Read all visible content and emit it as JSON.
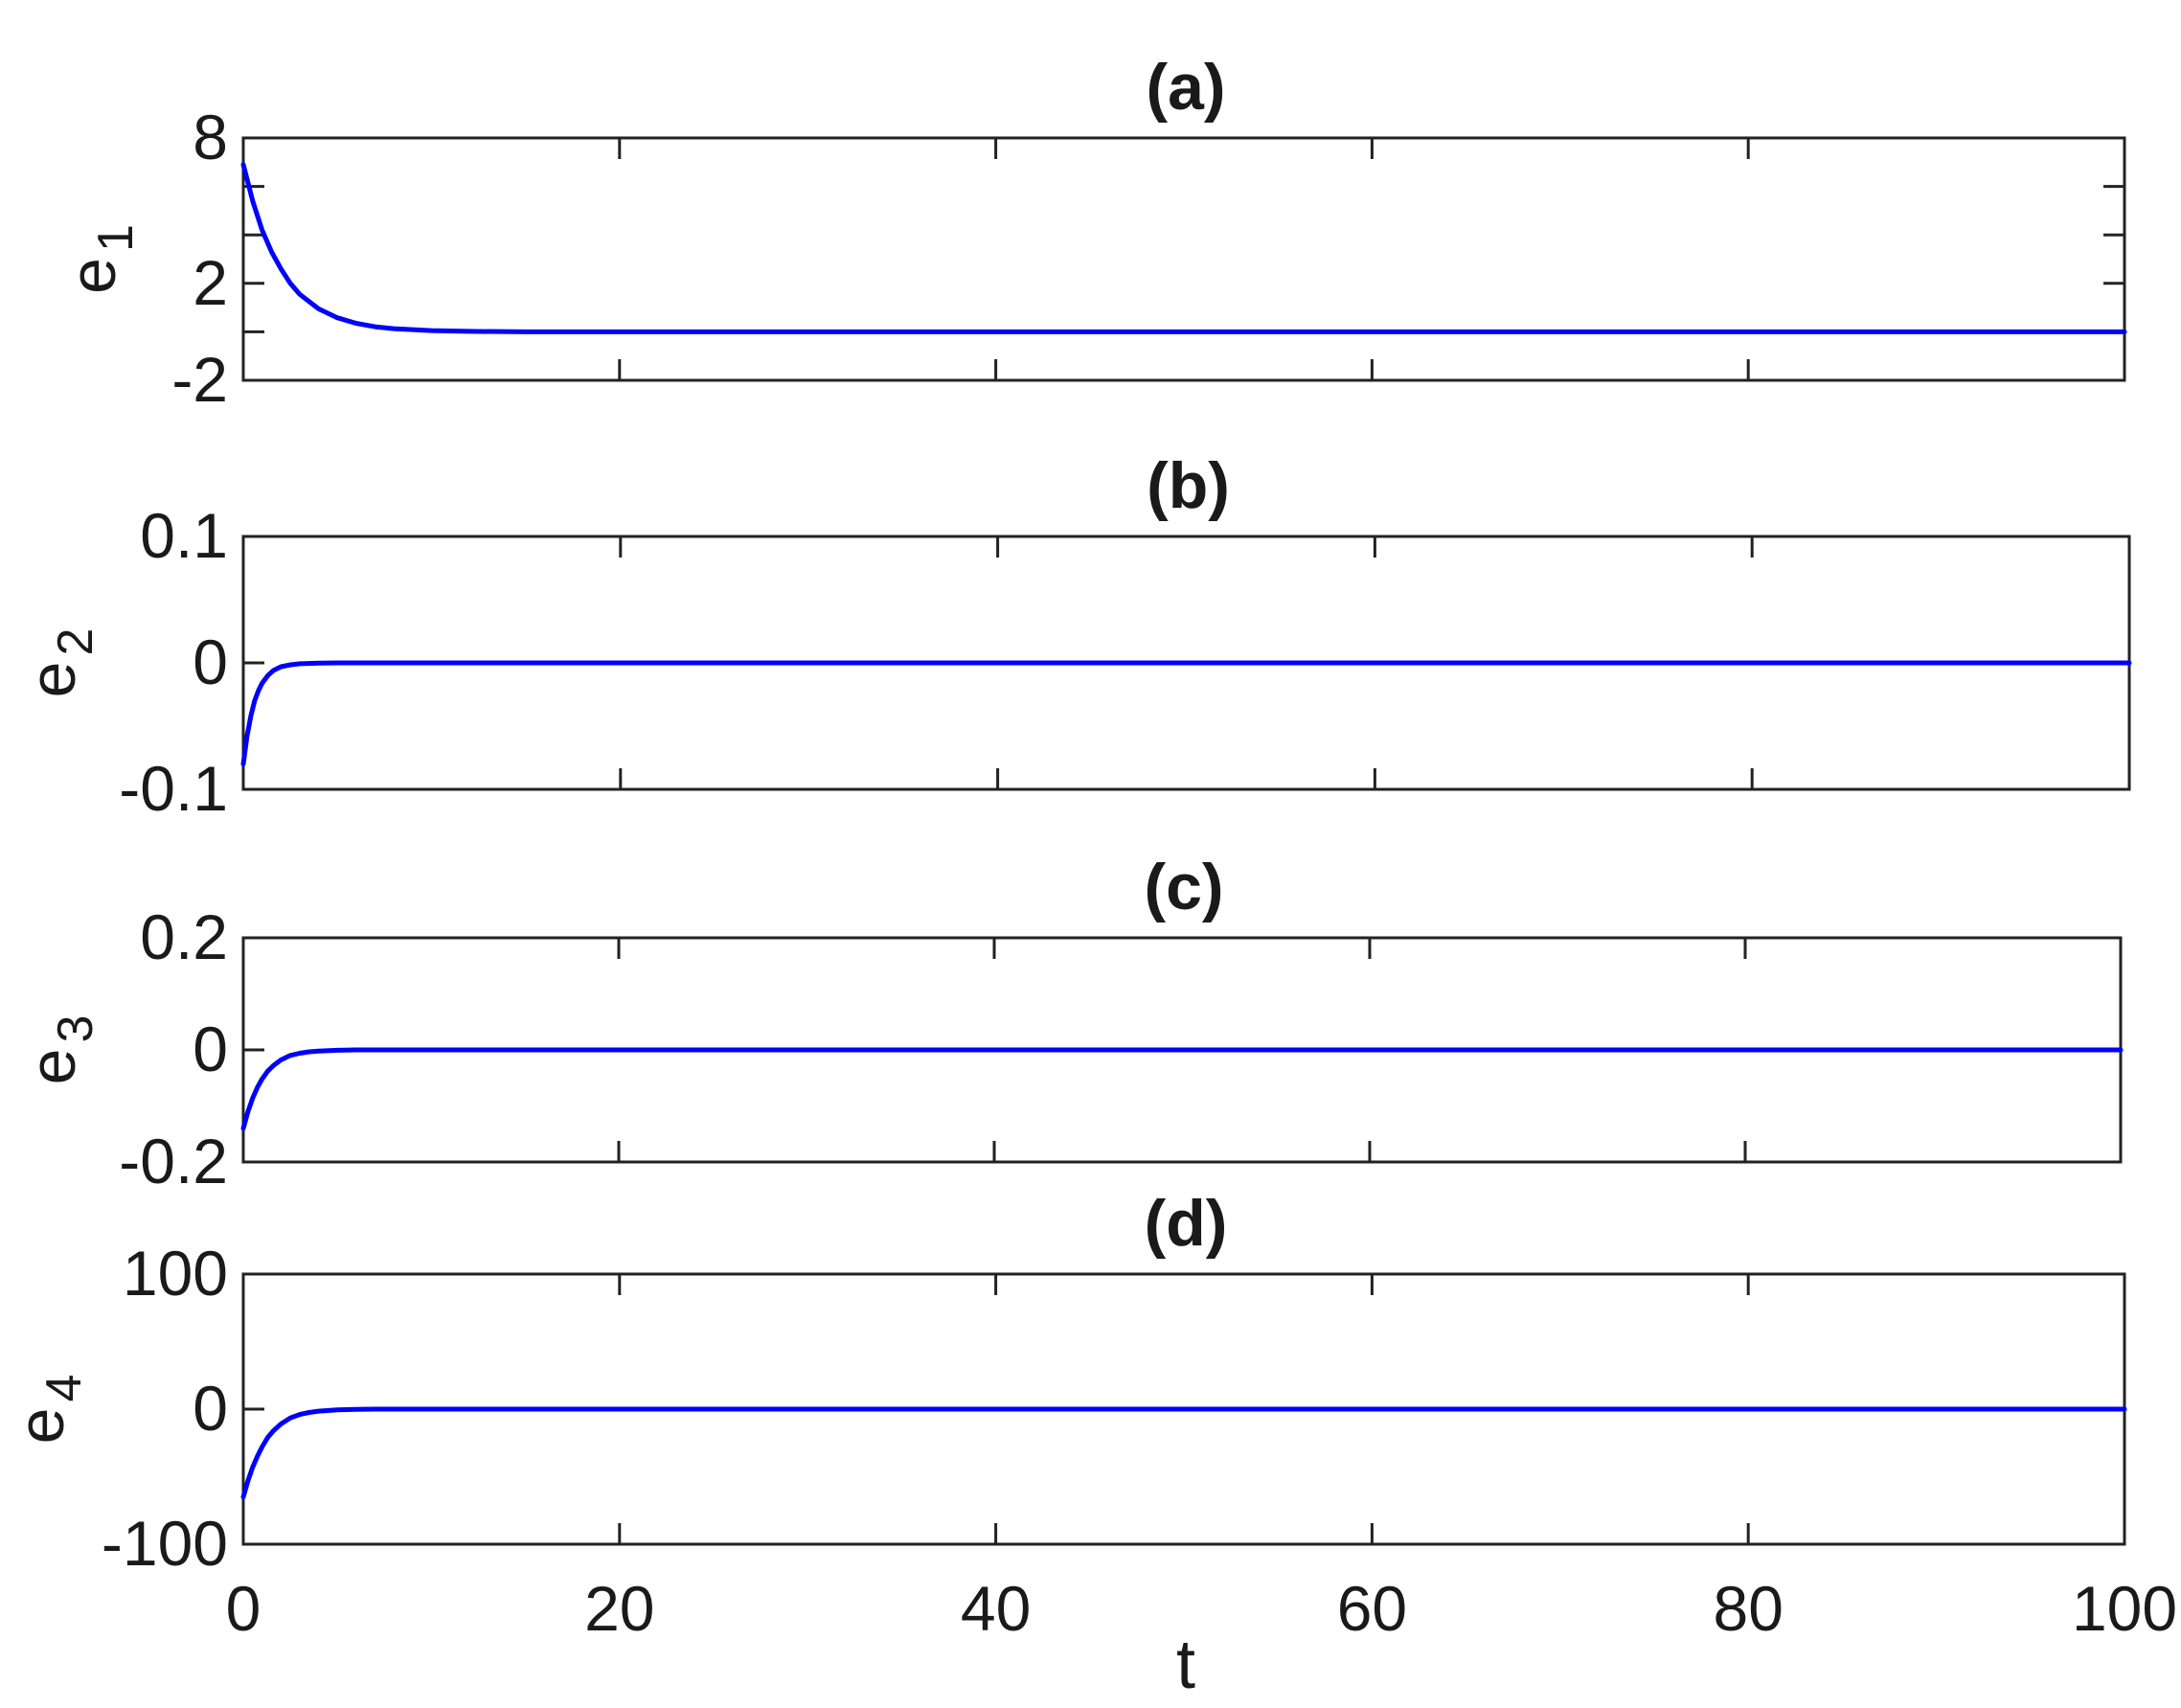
{
  "chart_data": [
    {
      "type": "line",
      "title": "(a)",
      "ylabel": "e",
      "ylabel_sub": "1",
      "xlim": [
        0,
        100
      ],
      "ylim": [
        -2,
        8
      ],
      "yticks": [
        -2,
        0,
        2,
        4,
        6,
        8
      ],
      "yticklabels": [
        "-2",
        "",
        "2",
        "",
        "",
        "8"
      ],
      "xticks": [
        0,
        20,
        40,
        60,
        80,
        100
      ],
      "color": "#0000ff",
      "series": [
        {
          "x": [
            0,
            0.5,
            1,
            1.5,
            2,
            2.5,
            3,
            4,
            5,
            6,
            7,
            8,
            10,
            12,
            15,
            20,
            30,
            50,
            80,
            100
          ],
          "y": [
            6.9,
            5.4,
            4.2,
            3.3,
            2.6,
            2.0,
            1.55,
            0.95,
            0.58,
            0.35,
            0.21,
            0.13,
            0.05,
            0.02,
            0.0,
            0.0,
            0.0,
            0.0,
            0.0,
            0.0
          ]
        }
      ]
    },
    {
      "type": "line",
      "title": "(b)",
      "ylabel": "e",
      "ylabel_sub": "2",
      "xlim": [
        0,
        100
      ],
      "ylim": [
        -0.1,
        0.1
      ],
      "yticks": [
        -0.1,
        0,
        0.1
      ],
      "yticklabels": [
        "-0.1",
        "0",
        "0.1"
      ],
      "xticks": [
        0,
        20,
        40,
        60,
        80,
        100
      ],
      "color": "#0000ff",
      "series": [
        {
          "x": [
            0,
            0.2,
            0.4,
            0.6,
            0.8,
            1,
            1.3,
            1.6,
            2,
            2.5,
            3,
            4,
            5,
            10,
            30,
            60,
            100
          ],
          "y": [
            -0.08,
            -0.058,
            -0.042,
            -0.03,
            -0.022,
            -0.016,
            -0.01,
            -0.006,
            -0.003,
            -0.0015,
            -0.0007,
            -0.0002,
            0.0,
            0.0,
            0.0,
            0.0,
            0.0
          ]
        }
      ]
    },
    {
      "type": "line",
      "title": "(c)",
      "ylabel": "e",
      "ylabel_sub": "3",
      "xlim": [
        0,
        100
      ],
      "ylim": [
        -0.2,
        0.2
      ],
      "yticks": [
        -0.2,
        0,
        0.2
      ],
      "yticklabels": [
        "-0.2",
        "0",
        "0.2"
      ],
      "xticks": [
        0,
        20,
        40,
        60,
        80,
        100
      ],
      "color": "#0000ff",
      "series": [
        {
          "x": [
            0,
            0.25,
            0.5,
            0.75,
            1,
            1.3,
            1.6,
            2,
            2.5,
            3,
            3.5,
            4,
            5,
            6,
            10,
            30,
            60,
            100
          ],
          "y": [
            -0.14,
            -0.11,
            -0.086,
            -0.067,
            -0.052,
            -0.038,
            -0.028,
            -0.018,
            -0.01,
            -0.006,
            -0.0035,
            -0.002,
            -0.0007,
            0.0,
            0.0,
            0.0,
            0.0,
            0.0
          ]
        }
      ]
    },
    {
      "type": "line",
      "title": "(d)",
      "ylabel": "e",
      "ylabel_sub": "4",
      "xlabel": "t",
      "xlim": [
        0,
        100
      ],
      "ylim": [
        -100,
        100
      ],
      "yticks": [
        -100,
        0,
        100
      ],
      "yticklabels": [
        "-100",
        "0",
        "100"
      ],
      "xticks": [
        0,
        20,
        40,
        60,
        80,
        100
      ],
      "xticklabels": [
        "0",
        "20",
        "40",
        "60",
        "80",
        "100"
      ],
      "color": "#0000ff",
      "series": [
        {
          "x": [
            0,
            0.25,
            0.5,
            0.75,
            1,
            1.3,
            1.6,
            2,
            2.5,
            3,
            3.5,
            4,
            5,
            6,
            7,
            10,
            20,
            50,
            100
          ],
          "y": [
            -65,
            -53,
            -43,
            -35,
            -28,
            -21,
            -16,
            -11,
            -6.5,
            -4,
            -2.5,
            -1.5,
            -0.5,
            -0.2,
            0.0,
            0.0,
            0.0,
            0.0,
            0.0
          ]
        }
      ]
    }
  ]
}
